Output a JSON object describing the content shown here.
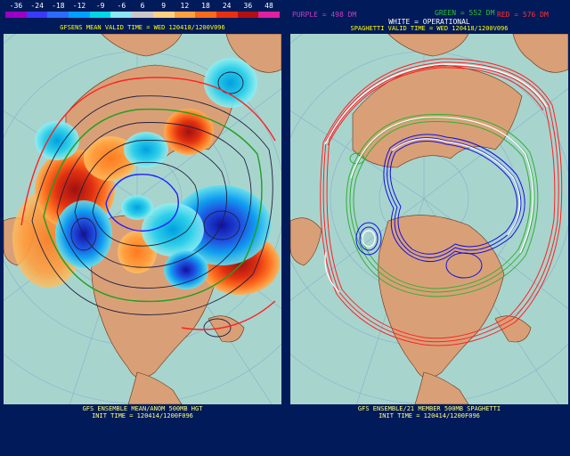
{
  "left_panel": {
    "scale_labels": [
      "-36",
      "-24",
      "-18",
      "-12",
      "-9",
      "-6",
      "6",
      "9",
      "12",
      "18",
      "24",
      "36",
      "48"
    ],
    "scale_colors": [
      "#9b00c8",
      "#3a3aff",
      "#2b6bff",
      "#00a0ff",
      "#00d6e6",
      "#8ae8f0",
      "#c8c8c8",
      "#ffd080",
      "#ffa040",
      "#ff6a1a",
      "#e83010",
      "#b01010",
      "#e020a0"
    ],
    "header": "GFSENS MEAN VALID TIME = WED 120418/1200V096",
    "footer_line1": "GFS ENSEMBLE MEAN/ANOM 500MB HGT",
    "footer_line2": "INIT TIME = 120414/1200F096"
  },
  "right_panel": {
    "legend_purple": "PURPLE = 498 DM",
    "legend_green": "GREEN = 552 DM",
    "legend_red": "RED = 576 DM",
    "legend_white": "WHITE = OPERATIONAL",
    "header": "SPAGHETTI VALID TIME = WED 120418/1200V096",
    "footer_line1": "GFS ENSEMBLE/21 MEMBER 500MB SPAGHETTI",
    "footer_line2": "INIT TIME = 120414/1200F096"
  },
  "colors": {
    "background": "#001a5a",
    "ocean": "#a8d4ce",
    "land": "#d9a078",
    "header_text": "#ffff00",
    "purple": "#c040c0",
    "green": "#30c030",
    "red": "#ff3030",
    "white": "#ffffff"
  }
}
